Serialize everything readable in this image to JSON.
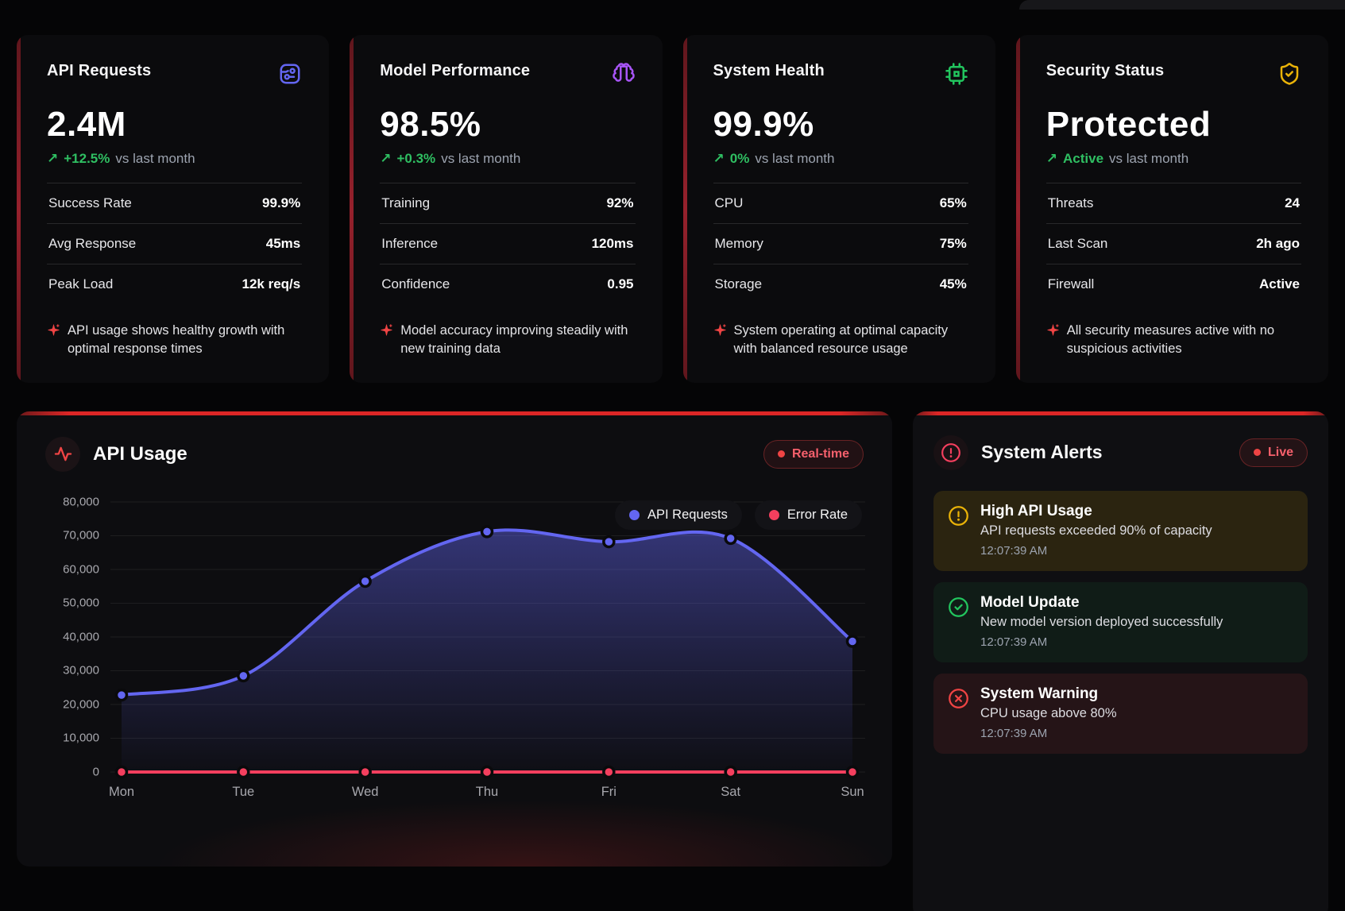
{
  "glyphs": {
    "up_arrow": "↗"
  },
  "cards": [
    {
      "title": "API Requests",
      "icon": "circuit-board-icon",
      "icon_color": "#6366f1",
      "value": "2.4M",
      "delta": "+12.5%",
      "delta_note": "vs last month",
      "metrics": [
        {
          "label": "Success Rate",
          "value": "99.9%"
        },
        {
          "label": "Avg Response",
          "value": "45ms"
        },
        {
          "label": "Peak Load",
          "value": "12k req/s"
        }
      ],
      "insight": "API usage shows healthy growth with optimal response times"
    },
    {
      "title": "Model Performance",
      "icon": "brain-icon",
      "icon_color": "#a855f7",
      "value": "98.5%",
      "delta": "+0.3%",
      "delta_note": "vs last month",
      "metrics": [
        {
          "label": "Training",
          "value": "92%"
        },
        {
          "label": "Inference",
          "value": "120ms"
        },
        {
          "label": "Confidence",
          "value": "0.95"
        }
      ],
      "insight": "Model accuracy improving steadily with new training data"
    },
    {
      "title": "System Health",
      "icon": "cpu-icon",
      "icon_color": "#22c55e",
      "value": "99.9%",
      "delta": "0%",
      "delta_note": "vs last month",
      "metrics": [
        {
          "label": "CPU",
          "value": "65%"
        },
        {
          "label": "Memory",
          "value": "75%"
        },
        {
          "label": "Storage",
          "value": "45%"
        }
      ],
      "insight": "System operating at optimal capacity with balanced resource usage"
    },
    {
      "title": "Security Status",
      "icon": "shield-check-icon",
      "icon_color": "#eab308",
      "value": "Protected",
      "delta": "Active",
      "delta_note": "vs last month",
      "metrics": [
        {
          "label": "Threats",
          "value": "24"
        },
        {
          "label": "Last Scan",
          "value": "2h ago"
        },
        {
          "label": "Firewall",
          "value": "Active"
        }
      ],
      "insight": "All security measures active with no suspicious activities"
    }
  ],
  "chart_panel": {
    "title": "API Usage",
    "header_icon": "activity-pulse-icon",
    "badge": "Real-time",
    "legend": [
      {
        "label": "API Requests",
        "color": "#6366f1"
      },
      {
        "label": "Error Rate",
        "color": "#f43f5e"
      }
    ]
  },
  "chart_data": {
    "type": "line",
    "x": [
      "Mon",
      "Tue",
      "Wed",
      "Thu",
      "Fri",
      "Sat",
      "Sun"
    ],
    "series": [
      {
        "name": "API Requests",
        "color": "#6366f1",
        "fill": true,
        "values": [
          22800,
          28500,
          56500,
          71200,
          68200,
          69200,
          38700
        ]
      },
      {
        "name": "Error Rate",
        "color": "#f43f5e",
        "fill": false,
        "values": [
          0,
          0,
          0,
          0,
          0,
          0,
          0
        ]
      }
    ],
    "ylim": [
      0,
      80000
    ],
    "ytick_step": 10000,
    "grid": true,
    "legend_position": "top-right",
    "title": "API Usage"
  },
  "alerts_panel": {
    "title": "System Alerts",
    "header_icon": "alert-circle-icon",
    "badge": "Live",
    "alerts": [
      {
        "type": "warning",
        "icon": "alert-circle-icon",
        "color": "#eab308",
        "title": "High API Usage",
        "message": "API requests exceeded 90% of capacity",
        "time": "12:07:39 AM"
      },
      {
        "type": "success",
        "icon": "check-circle-icon",
        "color": "#22c55e",
        "title": "Model Update",
        "message": "New model version deployed successfully",
        "time": "12:07:39 AM"
      },
      {
        "type": "error",
        "icon": "x-circle-icon",
        "color": "#ef4444",
        "title": "System Warning",
        "message": "CPU usage above 80%",
        "time": "12:07:39 AM"
      }
    ]
  }
}
